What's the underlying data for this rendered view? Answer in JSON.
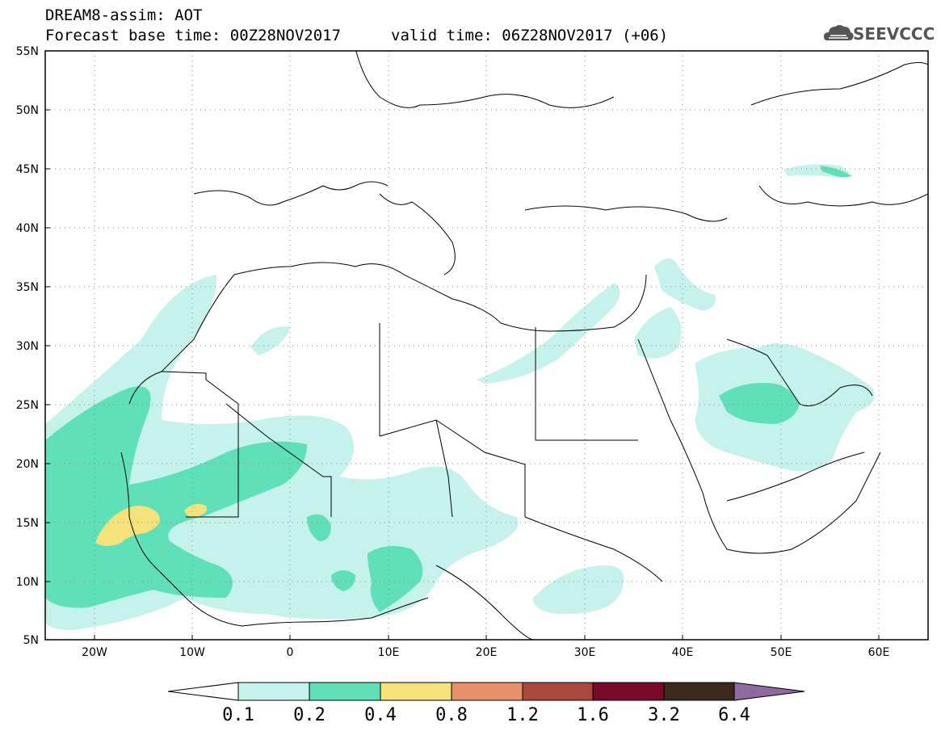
{
  "title": {
    "line1": "DREAM8-assim: AOT",
    "line2": "Forecast base time: 00Z28NOV2017",
    "valid": "valid time: 06Z28NOV2017 (+06)"
  },
  "logo": {
    "text": "SEEVCCC",
    "icon": "cloud-logo-icon"
  },
  "map": {
    "lon_range": [
      -25,
      65
    ],
    "lat_range": [
      5,
      55
    ],
    "y_ticks": [
      "55N",
      "50N",
      "45N",
      "40N",
      "35N",
      "30N",
      "25N",
      "20N",
      "15N",
      "10N",
      "5N"
    ],
    "x_ticks": [
      "20W",
      "10W",
      "0",
      "10E",
      "20E",
      "30E",
      "40E",
      "50E",
      "60E"
    ],
    "gridlines": "dotted"
  },
  "colorbar": {
    "labels": [
      "0.1",
      "0.2",
      "0.4",
      "0.8",
      "1.2",
      "1.6",
      "3.2",
      "6.4"
    ],
    "colors": [
      "#ffffff",
      "#c6f2ec",
      "#5ee0b8",
      "#f5e27a",
      "#e8906a",
      "#a8483a",
      "#7a0a2a",
      "#3a2a1a",
      "#8e6aa0"
    ]
  }
}
